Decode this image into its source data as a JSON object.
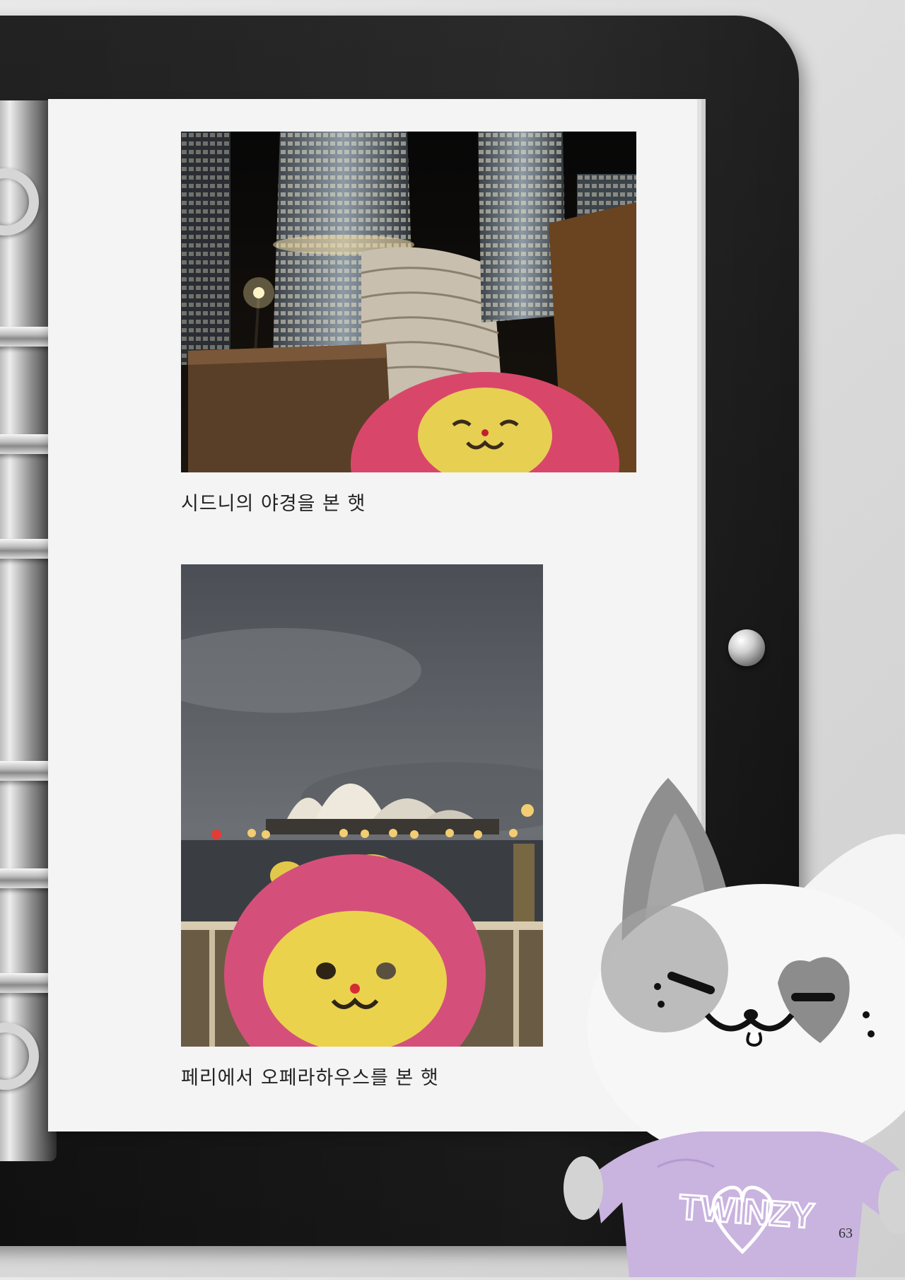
{
  "captions": {
    "photo_1": "시드니의 야경을 본 햇",
    "photo_2": "페리에서 오페라하우스를 본 햇"
  },
  "plush": {
    "shirt_text": "TWINZY"
  },
  "page_number": "63"
}
